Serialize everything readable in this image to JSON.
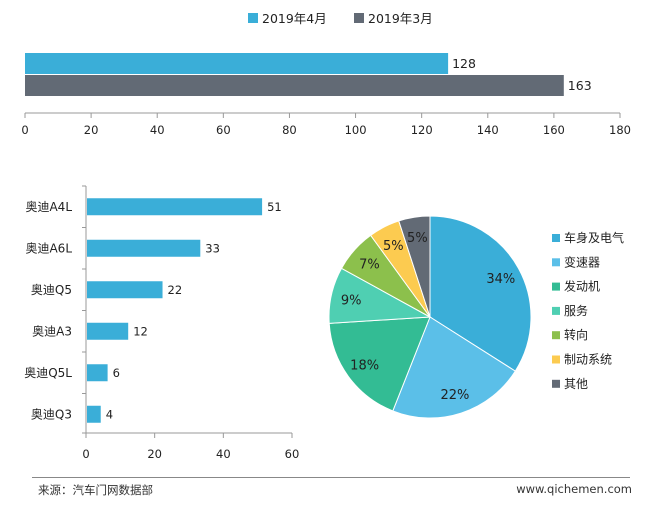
{
  "colors": {
    "apr": "#3aaed8",
    "mar": "#626a75",
    "pie": [
      "#3aaed8",
      "#5bbfe8",
      "#33bc94",
      "#4fcfb2",
      "#8cc04c",
      "#fccb50",
      "#626a75"
    ]
  },
  "chart_data": [
    {
      "type": "bar",
      "orientation": "horizontal",
      "series": [
        {
          "name": "2019年4月",
          "values": [
            128
          ]
        },
        {
          "name": "2019年3月",
          "values": [
            163
          ]
        }
      ],
      "xlim": [
        0,
        180
      ],
      "xticks": [
        "0",
        "20",
        "40",
        "60",
        "80",
        "100",
        "120",
        "140",
        "160",
        "180"
      ],
      "legend": "top"
    },
    {
      "type": "bar",
      "orientation": "horizontal",
      "categories": [
        "奥迪A4L",
        "奥迪A6L",
        "奥迪Q5",
        "奥迪A3",
        "奥迪Q5L",
        "奥迪Q3"
      ],
      "values": [
        51,
        33,
        22,
        12,
        6,
        4
      ],
      "xlim": [
        0,
        60
      ],
      "xticks": [
        "0",
        "20",
        "40",
        "60"
      ]
    },
    {
      "type": "pie",
      "categories": [
        "车身及电气",
        "变速器",
        "发动机",
        "服务",
        "转向",
        "制动系统",
        "其他"
      ],
      "values": [
        34,
        22,
        18,
        9,
        7,
        5,
        5
      ],
      "labels": [
        "34%",
        "22%",
        "18%",
        "9%",
        "7%",
        "5%",
        "5%"
      ],
      "legend": "right"
    }
  ],
  "footer": {
    "source": "来源：汽车门网数据部",
    "site": "www.qichemen.com"
  }
}
